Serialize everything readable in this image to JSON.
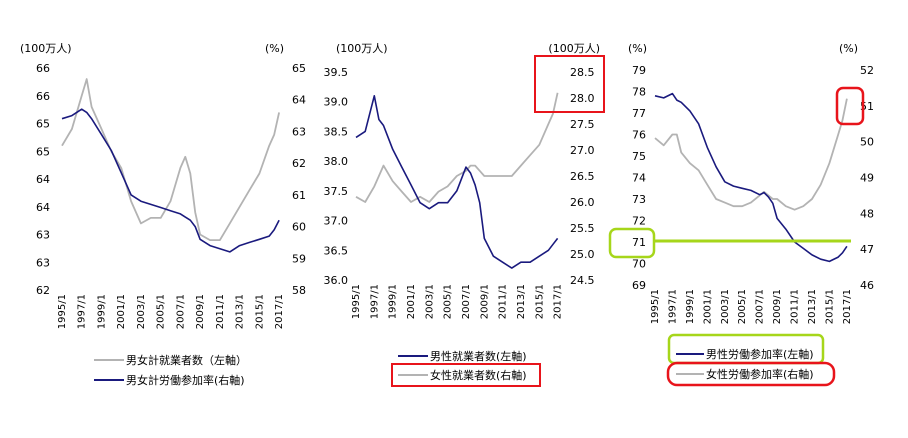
{
  "colors": {
    "dark": "#1a1a7e",
    "gray": "#b3b3b3",
    "red_highlight": "#e8141b",
    "green_highlight": "#a6d61a"
  },
  "chart_data": [
    {
      "type": "line",
      "units": {
        "left": "(100万人)",
        "right": "(%)"
      },
      "left_axis": {
        "ylim": [
          62,
          66
        ],
        "ticks": [
          "66",
          "66",
          "65",
          "65",
          "64",
          "64",
          "63",
          "63",
          "62"
        ]
      },
      "right_axis": {
        "ylim": [
          58,
          65
        ],
        "ticks": [
          "65",
          "64",
          "63",
          "62",
          "61",
          "60",
          "59",
          "58"
        ]
      },
      "x_ticks": [
        "1995/1",
        "1997/1",
        "1999/1",
        "2001/1",
        "2003/1",
        "2005/1",
        "2007/1",
        "2009/1",
        "2011/1",
        "2013/1",
        "2015/1",
        "2017/1"
      ],
      "x": [
        1995.0,
        1996.0,
        1997.0,
        1997.5,
        1998.0,
        1999.0,
        2000.0,
        2001.0,
        2002.0,
        2003.0,
        2004.0,
        2005.0,
        2006.0,
        2007.0,
        2007.5,
        2008.0,
        2008.5,
        2009.0,
        2010.0,
        2011.0,
        2012.0,
        2013.0,
        2014.0,
        2015.0,
        2016.0,
        2016.5,
        2017.0
      ],
      "series": [
        {
          "name": "男女計就業者数（左軸）",
          "axis": "left",
          "color": "gray",
          "values": [
            64.6,
            64.9,
            65.5,
            65.8,
            65.3,
            64.9,
            64.5,
            64.2,
            63.6,
            63.2,
            63.3,
            63.3,
            63.6,
            64.2,
            64.4,
            64.1,
            63.4,
            63.0,
            62.9,
            62.9,
            63.2,
            63.5,
            63.8,
            64.1,
            64.6,
            64.8,
            65.2
          ]
        },
        {
          "name": "男女計労働参加率(右軸)",
          "axis": "right",
          "color": "dark",
          "values": [
            63.4,
            63.5,
            63.7,
            63.6,
            63.4,
            62.9,
            62.4,
            61.7,
            61.0,
            60.8,
            60.7,
            60.6,
            60.5,
            60.4,
            60.3,
            60.2,
            60.0,
            59.6,
            59.4,
            59.3,
            59.2,
            59.4,
            59.5,
            59.6,
            59.7,
            59.9,
            60.2
          ]
        }
      ],
      "legend": [
        "男女計就業者数（左軸）",
        "男女計労働参加率(右軸)"
      ]
    },
    {
      "type": "line",
      "units": {
        "left": "(100万人)",
        "right": "(100万人)"
      },
      "left_axis": {
        "ylim": [
          36.0,
          39.5
        ],
        "ticks": [
          "39.5",
          "39.0",
          "38.5",
          "38.0",
          "37.5",
          "37.0",
          "36.5",
          "36.0"
        ]
      },
      "right_axis": {
        "ylim": [
          24.5,
          28.5
        ],
        "ticks": [
          "28.5",
          "28.0",
          "27.5",
          "27.0",
          "26.5",
          "26.0",
          "25.5",
          "25.0",
          "24.5"
        ]
      },
      "x_ticks": [
        "1995/1",
        "1997/1",
        "1999/1",
        "2001/1",
        "2003/1",
        "2005/1",
        "2007/1",
        "2009/1",
        "2011/1",
        "2013/1",
        "2015/1",
        "2017/1"
      ],
      "x": [
        1995.0,
        1996.0,
        1997.0,
        1997.5,
        1998.0,
        1999.0,
        2000.0,
        2001.0,
        2002.0,
        2003.0,
        2004.0,
        2005.0,
        2006.0,
        2007.0,
        2007.5,
        2008.0,
        2008.5,
        2009.0,
        2010.0,
        2011.0,
        2012.0,
        2013.0,
        2014.0,
        2015.0,
        2016.0,
        2016.5,
        2017.0
      ],
      "series": [
        {
          "name": "男性就業者数(左軸)",
          "axis": "left",
          "color": "dark",
          "values": [
            38.4,
            38.5,
            39.1,
            38.7,
            38.6,
            38.2,
            37.9,
            37.6,
            37.3,
            37.2,
            37.3,
            37.3,
            37.5,
            37.9,
            37.8,
            37.6,
            37.3,
            36.7,
            36.4,
            36.3,
            36.2,
            36.3,
            36.3,
            36.4,
            36.5,
            36.6,
            36.7
          ]
        },
        {
          "name": "女性就業者数(右軸)",
          "axis": "right",
          "color": "gray",
          "values": [
            26.1,
            26.0,
            26.3,
            26.5,
            26.7,
            26.4,
            26.2,
            26.0,
            26.1,
            26.0,
            26.2,
            26.3,
            26.5,
            26.6,
            26.7,
            26.7,
            26.6,
            26.5,
            26.5,
            26.5,
            26.5,
            26.7,
            26.9,
            27.1,
            27.5,
            27.7,
            28.1
          ]
        }
      ],
      "legend": [
        "男性就業者数(左軸)",
        "女性就業者数(右軸)"
      ]
    },
    {
      "type": "line",
      "units": {
        "left": "(%)",
        "right": "(%)"
      },
      "left_axis": {
        "ylim": [
          69,
          79
        ],
        "ticks": [
          "79",
          "78",
          "77",
          "76",
          "75",
          "74",
          "73",
          "72",
          "71",
          "70",
          "69"
        ]
      },
      "right_axis": {
        "ylim": [
          46,
          52
        ],
        "ticks": [
          "52",
          "51",
          "50",
          "49",
          "48",
          "47",
          "46"
        ]
      },
      "x_ticks": [
        "1995/1",
        "1997/1",
        "1999/1",
        "2001/1",
        "2003/1",
        "2005/1",
        "2007/1",
        "2009/1",
        "2011/1",
        "2013/1",
        "2015/1",
        "2017/1"
      ],
      "x": [
        1995.0,
        1996.0,
        1997.0,
        1997.5,
        1998.0,
        1999.0,
        2000.0,
        2001.0,
        2002.0,
        2003.0,
        2004.0,
        2005.0,
        2006.0,
        2007.0,
        2007.5,
        2008.0,
        2008.5,
        2009.0,
        2010.0,
        2011.0,
        2012.0,
        2013.0,
        2014.0,
        2015.0,
        2016.0,
        2016.5,
        2017.0
      ],
      "series": [
        {
          "name": "男性労働参加率(左軸)",
          "axis": "left",
          "color": "dark",
          "values": [
            77.8,
            77.7,
            77.9,
            77.6,
            77.5,
            77.1,
            76.5,
            75.4,
            74.5,
            73.8,
            73.6,
            73.5,
            73.4,
            73.2,
            73.3,
            73.1,
            72.8,
            72.1,
            71.6,
            71.0,
            70.7,
            70.4,
            70.2,
            70.1,
            70.3,
            70.5,
            70.8
          ]
        },
        {
          "name": "女性労働参加率(右軸)",
          "axis": "right",
          "color": "gray",
          "values": [
            50.1,
            49.9,
            50.2,
            50.2,
            49.7,
            49.4,
            49.2,
            48.8,
            48.4,
            48.3,
            48.2,
            48.2,
            48.3,
            48.5,
            48.6,
            48.5,
            48.4,
            48.4,
            48.2,
            48.1,
            48.2,
            48.4,
            48.8,
            49.4,
            50.2,
            50.6,
            51.2
          ]
        }
      ],
      "legend": [
        "男性労働参加率(左軸)",
        "女性労働参加率(右軸)"
      ]
    }
  ]
}
